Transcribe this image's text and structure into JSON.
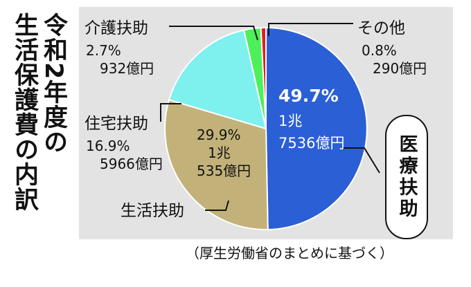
{
  "title_line1": "令和2年度の",
  "title_line2": "生活保護費の内訳",
  "source": "（厚生労働省のまとめに基づく）",
  "chart_data": {
    "type": "pie",
    "title": "令和2年度の生活保護費の内訳",
    "start_angle_deg": 0,
    "direction": "clockwise",
    "slices": [
      {
        "name": "医療扶助",
        "percent_label": "49.7%",
        "amount_line1": "1兆",
        "amount_line2": "7536億円",
        "value": 49.7,
        "color": "#2b5fd6"
      },
      {
        "name": "生活扶助",
        "percent_label": "29.9%",
        "amount_line1": "1兆",
        "amount_line2": "535億円",
        "value": 29.9,
        "color": "#c2b27a"
      },
      {
        "name": "住宅扶助",
        "percent_label": "16.9%",
        "amount_line1": "5966億円",
        "amount_line2": "",
        "value": 16.9,
        "color": "#7ef0ee"
      },
      {
        "name": "介護扶助",
        "percent_label": "2.7%",
        "amount_line1": "932億円",
        "amount_line2": "",
        "value": 2.7,
        "color": "#4df05a"
      },
      {
        "name": "その他",
        "percent_label": "0.8%",
        "amount_line1": "290億円",
        "amount_line2": "",
        "value": 0.8,
        "color": "#e01f1f"
      }
    ]
  }
}
